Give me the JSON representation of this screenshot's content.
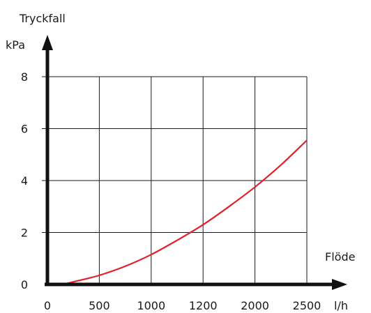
{
  "chart_data": {
    "type": "line",
    "title": "Tryckfall",
    "xlabel": "Flöde",
    "ylabel": "kPa",
    "xunit": "l/h",
    "x_tick_labels": [
      "0",
      "500",
      "1000",
      "1200",
      "2000",
      "2500"
    ],
    "y_tick_labels": [
      "0",
      "2",
      "4",
      "6",
      "8"
    ],
    "xlim": [
      0,
      2500
    ],
    "ylim": [
      0,
      8
    ],
    "grid": true,
    "line_color": "#e3202a",
    "series": [
      {
        "x": [
          150,
          250,
          500,
          750,
          1000,
          1250,
          1500,
          1750,
          2000,
          2250,
          2500
        ],
        "values": [
          0.0,
          0.1,
          0.35,
          0.7,
          1.15,
          1.7,
          2.3,
          3.0,
          3.75,
          4.6,
          5.55
        ]
      }
    ]
  }
}
